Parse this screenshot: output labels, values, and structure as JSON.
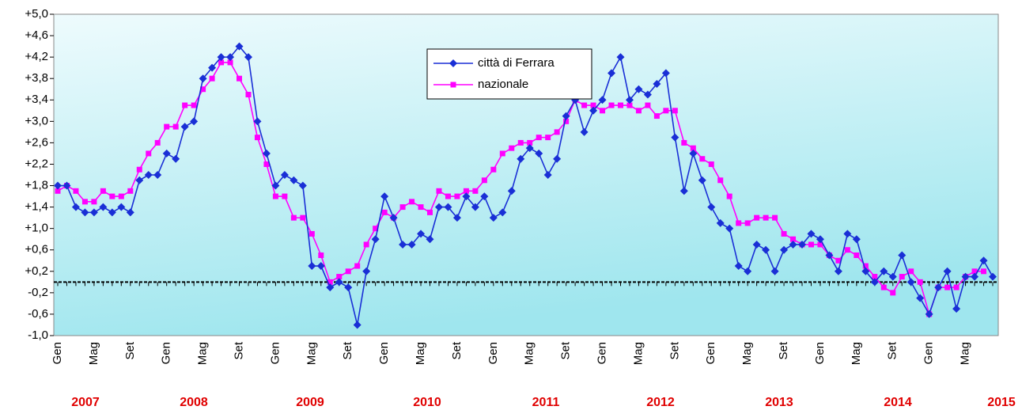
{
  "chart_data": {
    "type": "line",
    "categories": [
      "Gen",
      null,
      null,
      null,
      "Mag",
      null,
      null,
      null,
      "Set",
      null,
      null,
      null,
      "Gen",
      null,
      null,
      null,
      "Mag",
      null,
      null,
      null,
      "Set",
      null,
      null,
      null,
      "Gen",
      null,
      null,
      null,
      "Mag",
      null,
      null,
      null,
      "Set",
      null,
      null,
      null,
      "Gen",
      null,
      null,
      null,
      "Mag",
      null,
      null,
      null,
      "Set",
      null,
      null,
      null,
      "Gen",
      null,
      null,
      null,
      "Mag",
      null,
      null,
      null,
      "Set",
      null,
      null,
      null,
      "Gen",
      null,
      null,
      null,
      "Mag",
      null,
      null,
      null,
      "Set",
      null,
      null,
      null,
      "Gen",
      null,
      null,
      null,
      "Mag",
      null,
      null,
      null,
      "Set",
      null,
      null,
      null,
      "Gen",
      null,
      null,
      null,
      "Mag",
      null,
      null,
      null,
      "Set",
      null,
      null,
      null,
      "Gen",
      null,
      null,
      null,
      "Mag",
      null,
      null,
      null
    ],
    "years": [
      "2007",
      "2008",
      "2009",
      "2010",
      "2011",
      "2012",
      "2013",
      "2014",
      "2015"
    ],
    "series": [
      {
        "name": "città di Ferrara",
        "color": "#1a2fd6",
        "marker": "diamond",
        "values": [
          1.8,
          1.8,
          1.4,
          1.3,
          1.3,
          1.4,
          1.3,
          1.4,
          1.3,
          1.9,
          2.0,
          2.0,
          2.4,
          2.3,
          2.9,
          3.0,
          3.8,
          4.0,
          4.2,
          4.2,
          4.4,
          4.2,
          3.0,
          2.4,
          1.8,
          2.0,
          1.9,
          1.8,
          0.3,
          0.3,
          -0.1,
          0.0,
          -0.1,
          -0.8,
          0.2,
          0.8,
          1.6,
          1.2,
          0.7,
          0.7,
          0.9,
          0.8,
          1.4,
          1.4,
          1.2,
          1.6,
          1.4,
          1.6,
          1.2,
          1.3,
          1.7,
          2.3,
          2.5,
          2.4,
          2.0,
          2.3,
          3.1,
          3.4,
          2.8,
          3.2,
          3.4,
          3.9,
          4.2,
          3.4,
          3.6,
          3.5,
          3.7,
          3.9,
          2.7,
          1.7,
          2.4,
          1.9,
          1.4,
          1.1,
          1.0,
          0.3,
          0.2,
          0.7,
          0.6,
          0.2,
          0.6,
          0.7,
          0.7,
          0.9,
          0.8,
          0.5,
          0.2,
          0.9,
          0.8,
          0.2,
          0.0,
          0.2,
          0.1,
          0.5,
          0.0,
          -0.3,
          -0.6,
          -0.1,
          0.2,
          -0.5,
          0.1,
          0.1,
          0.4,
          0.1
        ]
      },
      {
        "name": "nazionale",
        "color": "#ff00ff",
        "marker": "square",
        "values": [
          1.7,
          1.8,
          1.7,
          1.5,
          1.5,
          1.7,
          1.6,
          1.6,
          1.7,
          2.1,
          2.4,
          2.6,
          2.9,
          2.9,
          3.3,
          3.3,
          3.6,
          3.8,
          4.1,
          4.1,
          3.8,
          3.5,
          2.7,
          2.2,
          1.6,
          1.6,
          1.2,
          1.2,
          0.9,
          0.5,
          0.0,
          0.1,
          0.2,
          0.3,
          0.7,
          1.0,
          1.3,
          1.2,
          1.4,
          1.5,
          1.4,
          1.3,
          1.7,
          1.6,
          1.6,
          1.7,
          1.7,
          1.9,
          2.1,
          2.4,
          2.5,
          2.6,
          2.6,
          2.7,
          2.7,
          2.8,
          3.0,
          3.4,
          3.3,
          3.3,
          3.2,
          3.3,
          3.3,
          3.3,
          3.2,
          3.3,
          3.1,
          3.2,
          3.2,
          2.6,
          2.5,
          2.3,
          2.2,
          1.9,
          1.6,
          1.1,
          1.1,
          1.2,
          1.2,
          1.2,
          0.9,
          0.8,
          0.7,
          0.7,
          0.7,
          0.5,
          0.4,
          0.6,
          0.5,
          0.3,
          0.1,
          -0.1,
          -0.2,
          0.1,
          0.2,
          0.0,
          -0.6,
          -0.1,
          -0.1,
          -0.1,
          0.1,
          0.2,
          0.2,
          null
        ]
      }
    ],
    "ylim": [
      -1.0,
      5.0
    ],
    "yticks": [
      {
        "value": -1.0,
        "label": "-1,0"
      },
      {
        "value": -0.6,
        "label": "-0,6"
      },
      {
        "value": -0.2,
        "label": "-0,2"
      },
      {
        "value": 0.2,
        "label": "+0,2"
      },
      {
        "value": 0.6,
        "label": "+0,6"
      },
      {
        "value": 1.0,
        "label": "+1,0"
      },
      {
        "value": 1.4,
        "label": "+1,4"
      },
      {
        "value": 1.8,
        "label": "+1,8"
      },
      {
        "value": 2.2,
        "label": "+2,2"
      },
      {
        "value": 2.6,
        "label": "+2,6"
      },
      {
        "value": 3.0,
        "label": "+3,0"
      },
      {
        "value": 3.4,
        "label": "+3,4"
      },
      {
        "value": 3.8,
        "label": "+3,8"
      },
      {
        "value": 4.2,
        "label": "+4,2"
      },
      {
        "value": 4.6,
        "label": "+4,6"
      },
      {
        "value": 5.0,
        "label": "+5,0"
      }
    ],
    "grid": false
  }
}
